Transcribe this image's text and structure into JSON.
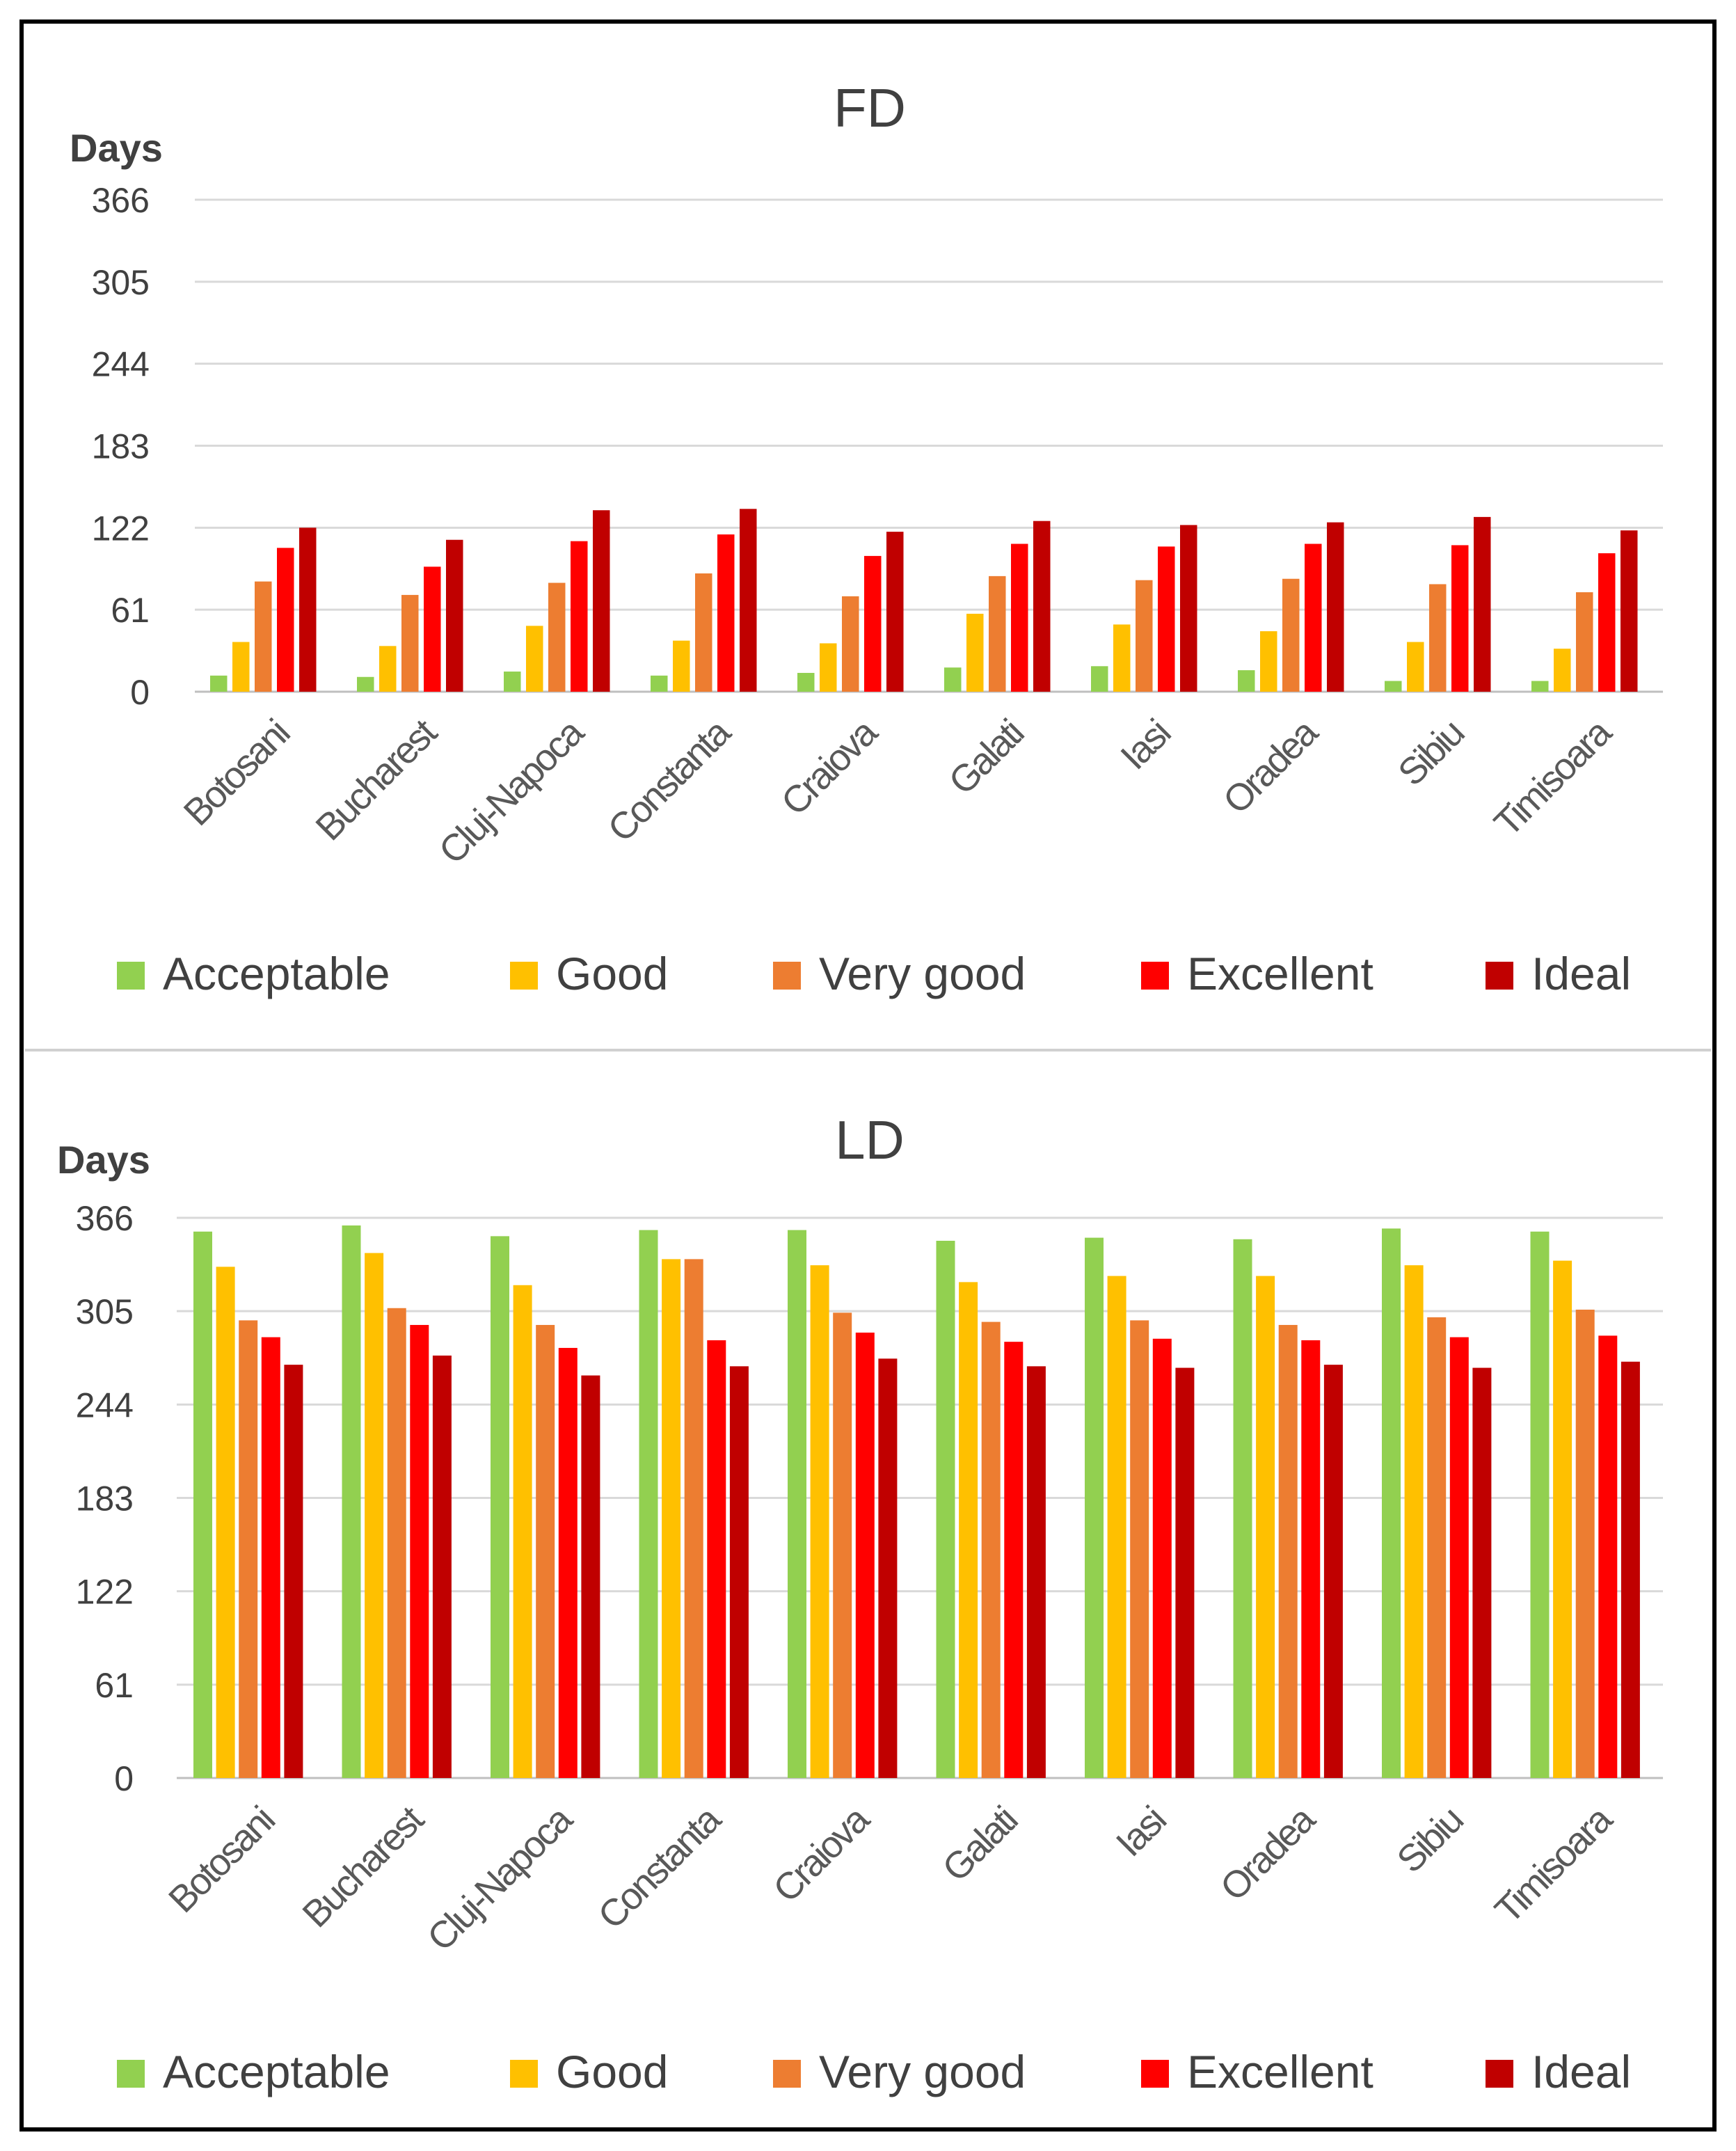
{
  "chart_data": [
    {
      "type": "bar",
      "title": "FD",
      "ylabel": "Days",
      "xlabel": "",
      "ylim": [
        0,
        366
      ],
      "yticks": [
        0,
        61,
        122,
        183,
        244,
        305,
        366
      ],
      "grid": true,
      "legend_position": "bottom",
      "categories": [
        "Botosani",
        "Bucharest",
        "Cluj-Napoca",
        "Constanta",
        "Craiova",
        "Galati",
        "Iasi",
        "Oradea",
        "Sibiu",
        "Timisoara"
      ],
      "series": [
        {
          "name": "Acceptable",
          "color": "#92d050",
          "values": [
            12,
            11,
            15,
            12,
            14,
            18,
            19,
            16,
            8,
            8
          ]
        },
        {
          "name": "Good",
          "color": "#ffc000",
          "values": [
            37,
            34,
            49,
            38,
            36,
            58,
            50,
            45,
            37,
            32
          ]
        },
        {
          "name": "Very good",
          "color": "#ed7d31",
          "values": [
            82,
            72,
            81,
            88,
            71,
            86,
            83,
            84,
            80,
            74
          ]
        },
        {
          "name": "Excellent",
          "color": "#ff0000",
          "values": [
            107,
            93,
            112,
            117,
            101,
            110,
            108,
            110,
            109,
            103
          ]
        },
        {
          "name": "Ideal",
          "color": "#c00000",
          "values": [
            122,
            113,
            135,
            136,
            119,
            127,
            124,
            126,
            130,
            120
          ]
        }
      ]
    },
    {
      "type": "bar",
      "title": "LD",
      "ylabel": "Days",
      "xlabel": "",
      "ylim": [
        0,
        366
      ],
      "yticks": [
        0,
        61,
        122,
        183,
        244,
        305,
        366
      ],
      "grid": true,
      "legend_position": "bottom",
      "categories": [
        "Botosani",
        "Bucharest",
        "Cluj-Napoca",
        "Constanta",
        "Craiova",
        "Galati",
        "Iasi",
        "Oradea",
        "Sibiu",
        "Timisoara"
      ],
      "series": [
        {
          "name": "Acceptable",
          "color": "#92d050",
          "values": [
            357,
            361,
            354,
            358,
            358,
            351,
            353,
            352,
            359,
            357
          ]
        },
        {
          "name": "Good",
          "color": "#ffc000",
          "values": [
            334,
            343,
            322,
            339,
            335,
            324,
            328,
            328,
            335,
            338
          ]
        },
        {
          "name": "Very good",
          "color": "#ed7d31",
          "values": [
            299,
            307,
            296,
            339,
            304,
            298,
            299,
            296,
            301,
            306
          ]
        },
        {
          "name": "Excellent",
          "color": "#ff0000",
          "values": [
            288,
            296,
            281,
            286,
            291,
            285,
            287,
            286,
            288,
            289
          ]
        },
        {
          "name": "Ideal",
          "color": "#c00000",
          "values": [
            270,
            276,
            263,
            269,
            274,
            269,
            268,
            270,
            268,
            272
          ]
        }
      ]
    }
  ]
}
